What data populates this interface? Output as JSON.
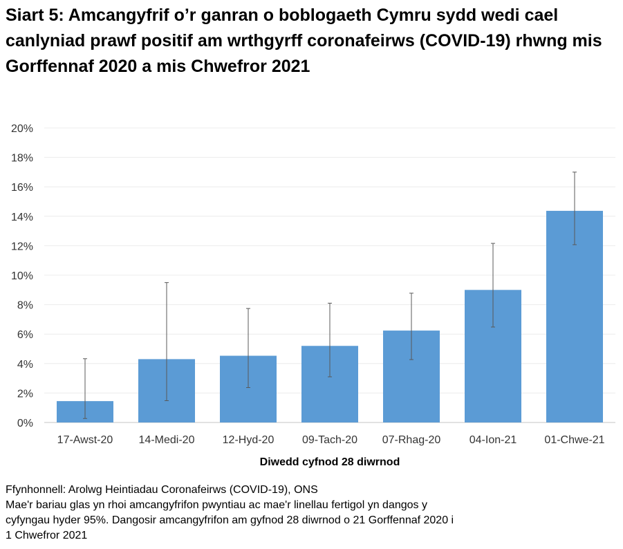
{
  "chart_data": {
    "type": "bar",
    "title": "Siart 5: Amcangyfrif o’r ganran o boblogaeth Cymru sydd wedi cael canlyniad prawf positif am wrthgyrff coronafeirws (COVID-19) rhwng mis Gorffennaf 2020 a mis Chwefror 2021",
    "xlabel": "Diwedd cyfnod 28 diwrnod",
    "ylabel": "",
    "ylim": [
      0,
      20
    ],
    "yticks": [
      "0%",
      "2%",
      "4%",
      "6%",
      "8%",
      "10%",
      "12%",
      "14%",
      "16%",
      "18%",
      "20%"
    ],
    "categories": [
      "17-Awst-20",
      "14-Medi-20",
      "12-Hyd-20",
      "09-Tach-20",
      "07-Rhag-20",
      "04-Ion-21",
      "01-Chwe-21"
    ],
    "values": [
      1.45,
      4.3,
      4.53,
      5.2,
      6.24,
      9.0,
      14.37
    ],
    "error_lower": [
      0.27,
      1.48,
      2.37,
      3.1,
      4.27,
      6.48,
      12.07
    ],
    "error_upper": [
      4.33,
      9.5,
      7.74,
      8.1,
      8.78,
      12.16,
      17.0
    ],
    "grid": true,
    "bar_color": "#5b9bd5",
    "error_color": "#595959"
  },
  "notes": {
    "source": "Ffynhonnell: Arolwg Heintiadau Coronafeirws (COVID-19), ONS",
    "line2": "Mae'r bariau glas yn rhoi amcangyfrifon pwyntiau ac mae'r linellau fertigol yn dangos y",
    "line3": "cyfyngau hyder 95%. Dangosir amcangyfrifon am gyfnod 28 diwrnod o 21 Gorffennaf 2020 i",
    "line4": "1 Chwefror 2021"
  }
}
